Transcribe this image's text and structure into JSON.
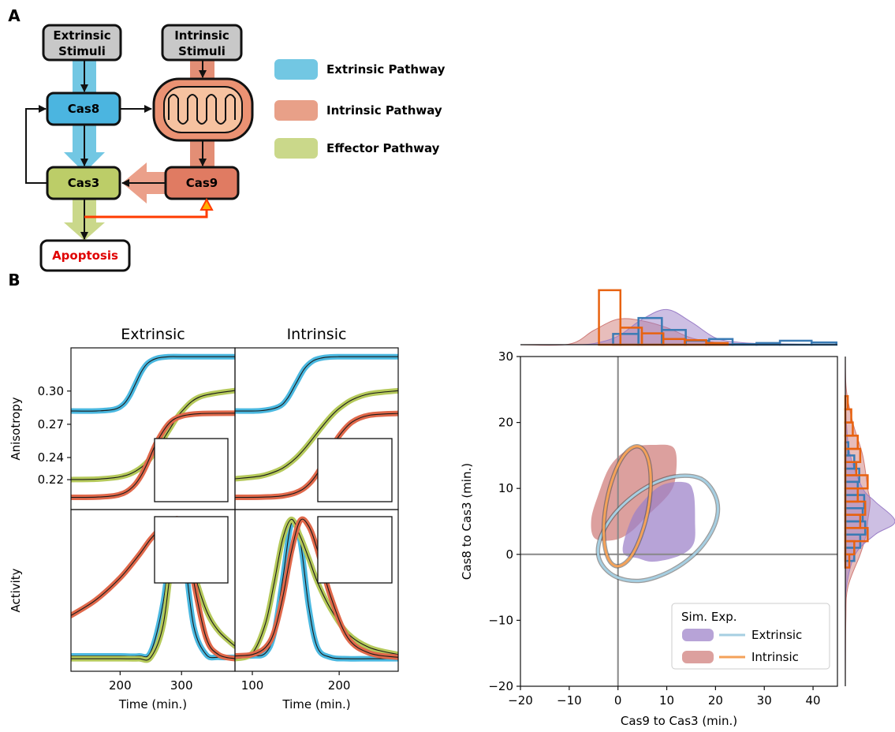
{
  "panel_labels": [
    "A",
    "B"
  ],
  "diagram": {
    "nodes": [
      {
        "lines": [
          "Extrinsic",
          "Stimuli"
        ]
      },
      {
        "lines": [
          "Intrinsic",
          "Stimuli"
        ]
      },
      {
        "lines": [
          "Cas8"
        ]
      },
      {
        "lines": [
          "Cas3"
        ]
      },
      {
        "lines": [
          "Cas9"
        ]
      },
      {
        "lines": [
          "Apoptosis"
        ]
      }
    ],
    "legend": [
      "Extrinsic Pathway",
      "Intrinsic Pathway",
      "Effector Pathway"
    ]
  },
  "chart_data": [
    {
      "type": "line",
      "title": "Extrinsic",
      "ylabel": "Anisotropy",
      "x": [
        120,
        160,
        190,
        205,
        215,
        225,
        235,
        245,
        260,
        280,
        300,
        330,
        387
      ],
      "xlim": [
        120,
        387
      ],
      "ylim": [
        0.193,
        0.339
      ],
      "yticks": [
        {
          "value": 0.3,
          "label": "0.30"
        },
        0.27,
        0.24,
        0.22
      ],
      "series": [
        {
          "color": "#4ab8e0",
          "values": [
            0.282,
            0.282,
            0.2834,
            0.2878,
            0.2952,
            0.3065,
            0.3178,
            0.3252,
            0.3296,
            0.331,
            0.331,
            0.331,
            0.331
          ]
        },
        {
          "color": "#b5c95a",
          "values": [
            0.2201,
            0.2204,
            0.2217,
            0.2232,
            0.2249,
            0.2276,
            0.2313,
            0.2365,
            0.2472,
            0.2651,
            0.2813,
            0.2948,
            0.3005
          ]
        },
        {
          "color": "#e0684a",
          "values": [
            0.204,
            0.2042,
            0.2054,
            0.2076,
            0.2108,
            0.2161,
            0.2244,
            0.2357,
            0.2542,
            0.271,
            0.2773,
            0.2796,
            0.28
          ]
        }
      ]
    },
    {
      "type": "line",
      "title": "Intrinsic",
      "x": [
        80,
        110,
        130,
        140,
        150,
        160,
        170,
        180,
        190,
        200,
        215,
        235,
        268
      ],
      "xlim": [
        80,
        268
      ],
      "ylim": [
        0.193,
        0.339
      ],
      "series": [
        {
          "color": "#4ab8e0",
          "values": [
            0.282,
            0.2823,
            0.2857,
            0.2929,
            0.3065,
            0.3201,
            0.3273,
            0.3299,
            0.3308,
            0.331,
            0.331,
            0.331,
            0.331
          ]
        },
        {
          "color": "#b5c95a",
          "values": [
            0.2208,
            0.2233,
            0.2284,
            0.233,
            0.2394,
            0.2478,
            0.2575,
            0.2675,
            0.2768,
            0.2843,
            0.2922,
            0.2975,
            0.3003
          ]
        },
        {
          "color": "#e0684a",
          "values": [
            0.204,
            0.2042,
            0.2049,
            0.2061,
            0.2082,
            0.2124,
            0.2202,
            0.232,
            0.2463,
            0.2596,
            0.2721,
            0.2782,
            0.2798
          ]
        }
      ]
    },
    {
      "type": "line",
      "ylabel": "Activity",
      "xlabel": "Time (min.)",
      "x": [
        120,
        160,
        200,
        230,
        250,
        270,
        285,
        295,
        305,
        320,
        340,
        360,
        387
      ],
      "xlim": [
        120,
        387
      ],
      "ylim": [
        -0.09,
        1.07
      ],
      "xticks": [
        200,
        300
      ],
      "series": [
        {
          "color": "#4ab8e0",
          "values": [
            0.02,
            0.02,
            0.02,
            0.02,
            0.05,
            0.4,
            0.91,
            0.98,
            0.73,
            0.23,
            0.03,
            0.01,
            0.01
          ]
        },
        {
          "color": "#b5c95a",
          "values": [
            0,
            0,
            0,
            0,
            0.01,
            0.24,
            0.75,
            0.99,
            0.87,
            0.62,
            0.35,
            0.2,
            0.09
          ]
        },
        {
          "color": "#e0684a",
          "values": [
            0.31,
            0.42,
            0.58,
            0.74,
            0.86,
            0.95,
            0.99,
            1.0,
            0.93,
            0.55,
            0.15,
            0.03,
            0.0
          ]
        }
      ]
    },
    {
      "type": "line",
      "xlabel": "Time (min.)",
      "x": [
        80,
        100,
        115,
        125,
        135,
        145,
        155,
        165,
        175,
        190,
        210,
        235,
        268
      ],
      "xlim": [
        80,
        268
      ],
      "ylim": [
        -0.09,
        1.07
      ],
      "xticks": [
        100,
        200
      ],
      "series": [
        {
          "color": "#4ab8e0",
          "values": [
            0.02,
            0.02,
            0.04,
            0.18,
            0.57,
            0.97,
            0.85,
            0.37,
            0.08,
            0.01,
            0,
            0,
            0
          ]
        },
        {
          "color": "#b5c95a",
          "values": [
            0,
            0.04,
            0.25,
            0.54,
            0.86,
            1.0,
            0.88,
            0.72,
            0.55,
            0.36,
            0.18,
            0.08,
            0.03
          ]
        },
        {
          "color": "#e0684a",
          "values": [
            0.02,
            0.03,
            0.08,
            0.19,
            0.44,
            0.77,
            0.99,
            0.95,
            0.78,
            0.45,
            0.15,
            0.04,
            0.01
          ]
        }
      ]
    },
    {
      "type": "joint",
      "xlabel": "Cas9 to Cas3 (min.)",
      "ylabel": "Cas8 to Cas3 (min.)",
      "xlim": [
        -20,
        45
      ],
      "ylim": [
        -20,
        30
      ],
      "xticks": [
        {
          "value": -20,
          "label": "−20"
        },
        {
          "value": -10,
          "label": "−10"
        },
        0,
        10,
        20,
        30,
        40
      ],
      "yticks": [
        {
          "value": -20,
          "label": "−20"
        },
        {
          "value": -10,
          "label": "−10"
        },
        0,
        10,
        20,
        30
      ],
      "marginal_lim": [
        0,
        1
      ],
      "legend_title": "Sim. Exp.",
      "legend": "lower right",
      "series": [
        {
          "name": "Extrinsic",
          "sim_color": "#9b7fc8",
          "exp_color": "#a6cfe2",
          "hist_color": "#3a7bb5",
          "region": {
            "x": [
              1.0,
              2.6,
              5.0,
              9.0,
              13.9,
              15.5,
              15.8,
              15.5,
              12.6,
              7.4,
              4.2
            ],
            "y": [
              0.4,
              5.1,
              7.9,
              10.5,
              10.9,
              9.3,
              5.1,
              1.6,
              -0.2,
              -1.1,
              -0.6
            ]
          },
          "ellipse": {
            "x": [
              20.2,
              17.2,
              11.7,
              5.4,
              -0.3,
              -3.6,
              -3.8,
              -0.7,
              4.7,
              11.1,
              16.7,
              20.0
            ],
            "y": [
              8.4,
              11.4,
              11.8,
              10.0,
              6.5,
              2.5,
              -0.8,
              -3.3,
              -4.0,
              -2.4,
              0.8,
              4.8
            ]
          },
          "kde_x": {
            "x": [
              -20,
              -10,
              -5,
              0,
              5,
              10,
              15,
              20,
              25,
              30,
              45
            ],
            "density": [
              0,
              0,
              0.02,
              0.15,
              0.45,
              0.62,
              0.4,
              0.12,
              0.04,
              0.02,
              0
            ]
          },
          "kde_y": {
            "y": [
              -20,
              -10,
              -5,
              0,
              3,
              5,
              8,
              10,
              15,
              20,
              25,
              30
            ],
            "density": [
              0,
              0,
              0.02,
              0.2,
              0.6,
              1.0,
              0.6,
              0.35,
              0.1,
              0.02,
              0,
              0
            ]
          },
          "hist_x": {
            "bins": [
              -1.0,
              4.2,
              9.0,
              13.9,
              18.7,
              23.5,
              28.4,
              33.2,
              39.7,
              44.8
            ],
            "counts": [
              0.19,
              0.47,
              0.26,
              0.07,
              0.1,
              0.01,
              0.03,
              0.07,
              0.04
            ]
          },
          "hist_y": {
            "bins": [
              -1,
              1,
              3,
              5,
              7,
              9,
              11,
              13,
              15,
              17
            ],
            "counts": [
              0.18,
              0.3,
              0.4,
              0.35,
              0.38,
              0.25,
              0.28,
              0.18,
              0.06
            ]
          }
        },
        {
          "name": "Intrinsic",
          "sim_color": "#cf7b78",
          "exp_color": "#f4a259",
          "hist_color": "#e8620f",
          "region": {
            "x": [
              -5.5,
              -4.2,
              -1.5,
              2.6,
              7.4,
              11.5,
              11.9,
              10.6,
              5.8,
              2.6,
              -0.6,
              -4.7
            ],
            "y": [
              5.1,
              8.7,
              13.5,
              16.1,
              16.6,
              16.1,
              12.3,
              9.3,
              5.7,
              3.4,
              2.2,
              2.4
            ]
          },
          "ellipse": {
            "x": [
              3.9,
              5.8,
              6.7,
              6.3,
              4.7,
              2.4,
              -0.1,
              -2.0,
              -2.9,
              -2.5,
              -0.9,
              1.4
            ],
            "y": [
              16.4,
              15.2,
              11.9,
              7.3,
              2.8,
              -0.6,
              -1.8,
              -0.6,
              2.8,
              7.3,
              11.9,
              15.2
            ]
          },
          "kde_x": {
            "x": [
              -20,
              -10,
              -5,
              0,
              5,
              10,
              15,
              20,
              25,
              30,
              45
            ],
            "density": [
              0,
              0.01,
              0.25,
              0.45,
              0.42,
              0.3,
              0.12,
              0.04,
              0.02,
              0.01,
              0
            ]
          },
          "kde_y": {
            "y": [
              -20,
              -10,
              -5,
              0,
              3,
              5,
              8,
              10,
              15,
              20,
              25,
              30
            ],
            "density": [
              0,
              0.01,
              0.05,
              0.3,
              0.42,
              0.45,
              0.5,
              0.45,
              0.35,
              0.15,
              0.02,
              0
            ]
          },
          "hist_x": {
            "bins": [
              -3.9,
              0.5,
              4.9,
              9.3,
              13.7,
              18.1,
              22.5
            ],
            "counts": [
              0.96,
              0.3,
              0.2,
              0.1,
              0.08,
              0.03
            ]
          },
          "hist_y": {
            "bins": [
              -2,
              0,
              2,
              4,
              6,
              8,
              10,
              12,
              14,
              16,
              18,
              20,
              22,
              24
            ],
            "counts": [
              0.08,
              0.18,
              0.45,
              0.3,
              0.4,
              0.25,
              0.45,
              0.22,
              0.3,
              0.25,
              0.15,
              0.12,
              0.05
            ]
          }
        }
      ]
    }
  ]
}
